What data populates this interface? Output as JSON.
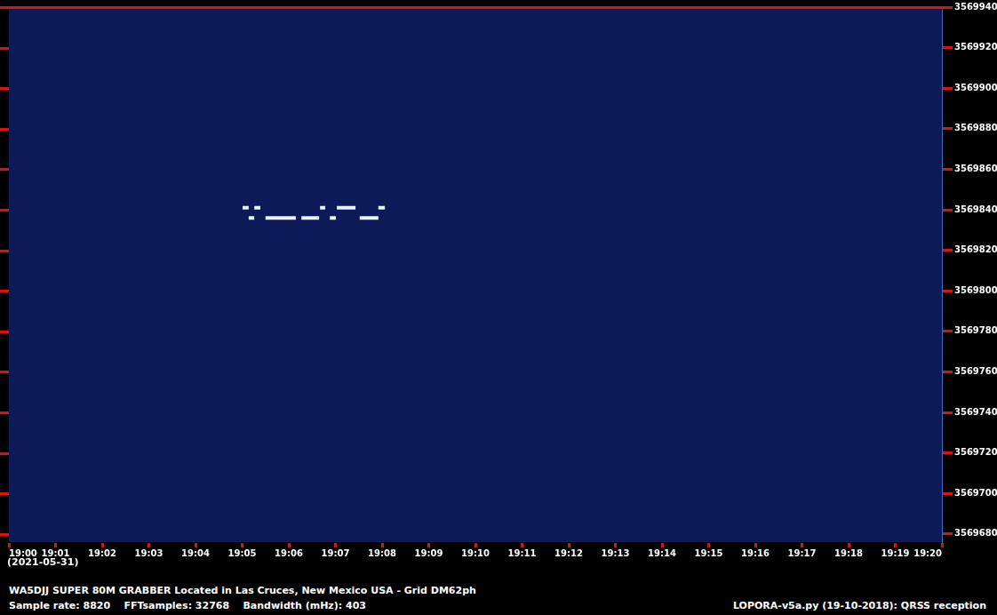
{
  "chart_data": {
    "type": "line",
    "title": "WA5DJJ SUPER 80M GRABBER Located in Las Cruces, New Mexico USA - Grid DM62ph",
    "subtitle": "Sample rate: 8820    FFTsamples: 32768    Bandwidth (mHz): 403",
    "annotations": [
      "(2021-05-31)",
      "LOPORA-v5a.py (19-10-2018): QRSS reception"
    ],
    "color": "#e6f2ff",
    "grid": false,
    "x": [
      1145.01,
      1145.14,
      1145.14,
      1145.14,
      1145.26,
      1145.26,
      1145.26,
      1145.39,
      1145.39,
      1145.5,
      1146.15,
      1146.15,
      1146.27,
      1146.65,
      1146.65,
      1146.67,
      1146.78,
      1146.78,
      1146.88,
      1147.01,
      1147.01,
      1147.03,
      1147.43,
      1147.43,
      1147.52,
      1147.92,
      1147.92,
      1147.92,
      1148.06
    ],
    "values": [
      3569841,
      3569841,
      null,
      3569836,
      3569836,
      null,
      3569841,
      3569841,
      null,
      3569836,
      3569836,
      null,
      3569836,
      3569836,
      null,
      3569841,
      3569841,
      null,
      3569836,
      3569836,
      null,
      3569841,
      3569841,
      null,
      3569836,
      3569836,
      null,
      3569841,
      3569841
    ],
    "xlim": [
      1140,
      1160
    ],
    "xticks": [
      {
        "value": 1140,
        "label": "19:00"
      },
      {
        "value": 1141,
        "label": "19:01"
      },
      {
        "value": 1142,
        "label": "19:02"
      },
      {
        "value": 1143,
        "label": "19:03"
      },
      {
        "value": 1144,
        "label": "19:04"
      },
      {
        "value": 1145,
        "label": "19:05"
      },
      {
        "value": 1146,
        "label": "19:06"
      },
      {
        "value": 1147,
        "label": "19:07"
      },
      {
        "value": 1148,
        "label": "19:08"
      },
      {
        "value": 1149,
        "label": "19:09"
      },
      {
        "value": 1150,
        "label": "19:10"
      },
      {
        "value": 1151,
        "label": "19:11"
      },
      {
        "value": 1152,
        "label": "19:12"
      },
      {
        "value": 1153,
        "label": "19:13"
      },
      {
        "value": 1154,
        "label": "19:14"
      },
      {
        "value": 1155,
        "label": "19:15"
      },
      {
        "value": 1156,
        "label": "19:16"
      },
      {
        "value": 1157,
        "label": "19:17"
      },
      {
        "value": 1158,
        "label": "19:18"
      },
      {
        "value": 1159,
        "label": "19:19"
      },
      {
        "value": 1160,
        "label": "19:20"
      }
    ],
    "ylim": [
      3569676,
      3569940
    ],
    "yticks": [
      3569680,
      3569700,
      3569720,
      3569740,
      3569760,
      3569780,
      3569800,
      3569820,
      3569840,
      3569860,
      3569880,
      3569900,
      3569920,
      3569940
    ]
  }
}
